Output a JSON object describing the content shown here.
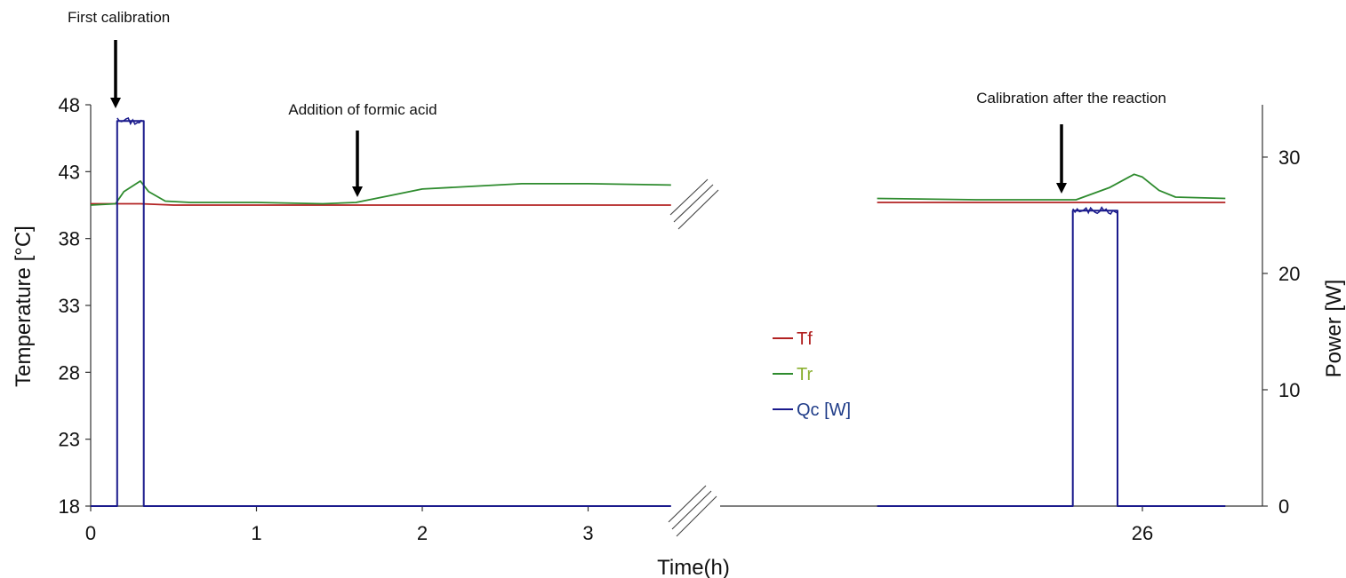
{
  "chart_data": {
    "type": "line",
    "xlabel": "Time(h)",
    "ylabel_left": "Temperature [°C]",
    "ylabel_right": "Power [W]",
    "ylim_left": [
      18,
      48
    ],
    "ylim_right": [
      0,
      34.5
    ],
    "yticks_left": [
      "48",
      "43",
      "38",
      "33",
      "28",
      "23",
      "18"
    ],
    "yticks_right": [
      "30",
      "20",
      "10",
      "0"
    ],
    "xticks_segment1": [
      "0",
      "1",
      "2",
      "3"
    ],
    "xticks_segment2": [
      "26"
    ],
    "axis_break": true,
    "legend": {
      "position": "center",
      "entries": [
        "Tf",
        "Tr",
        "Qc [W]"
      ]
    },
    "colors": {
      "Tf": "#b22222",
      "Tr": "#2e8b2e",
      "Qc": "#1a1a8c",
      "legend_Tf": "#b22222",
      "legend_Tr": "#8ab030",
      "legend_Qc": "#1f3c88"
    },
    "annotations": [
      "First calibration",
      "Addition of formic acid",
      "Calibration after the reaction"
    ],
    "series": [
      {
        "name": "Tf",
        "axis": "left",
        "seg1": [
          [
            0,
            40.6
          ],
          [
            0.3,
            40.6
          ],
          [
            0.5,
            40.5
          ],
          [
            1.0,
            40.5
          ],
          [
            1.5,
            40.5
          ],
          [
            2.0,
            40.5
          ],
          [
            2.5,
            40.5
          ],
          [
            3.0,
            40.5
          ],
          [
            3.5,
            40.5
          ]
        ],
        "seg2": [
          [
            24.4,
            40.7
          ],
          [
            25.5,
            40.7
          ],
          [
            26.0,
            40.7
          ],
          [
            26.5,
            40.7
          ]
        ]
      },
      {
        "name": "Tr",
        "axis": "left",
        "seg1": [
          [
            0,
            40.5
          ],
          [
            0.15,
            40.6
          ],
          [
            0.2,
            41.5
          ],
          [
            0.3,
            42.3
          ],
          [
            0.35,
            41.5
          ],
          [
            0.45,
            40.8
          ],
          [
            0.6,
            40.7
          ],
          [
            1.0,
            40.7
          ],
          [
            1.4,
            40.6
          ],
          [
            1.6,
            40.7
          ],
          [
            1.8,
            41.2
          ],
          [
            2.0,
            41.7
          ],
          [
            2.3,
            41.9
          ],
          [
            2.6,
            42.1
          ],
          [
            3.0,
            42.1
          ],
          [
            3.5,
            42.0
          ]
        ],
        "seg2": [
          [
            24.4,
            41.0
          ],
          [
            25.0,
            40.9
          ],
          [
            25.6,
            40.9
          ],
          [
            25.8,
            41.8
          ],
          [
            25.95,
            42.8
          ],
          [
            26.0,
            42.6
          ],
          [
            26.1,
            41.6
          ],
          [
            26.2,
            41.1
          ],
          [
            26.5,
            41.0
          ]
        ]
      },
      {
        "name": "Qc [W]",
        "axis": "right",
        "seg1": [
          [
            0,
            0
          ],
          [
            0.16,
            0
          ],
          [
            0.16,
            33.1
          ],
          [
            0.32,
            33.1
          ],
          [
            0.32,
            0
          ],
          [
            3.5,
            0
          ]
        ],
        "seg2": [
          [
            24.4,
            0
          ],
          [
            25.58,
            0
          ],
          [
            25.58,
            25.4
          ],
          [
            25.85,
            25.4
          ],
          [
            25.85,
            0
          ],
          [
            26.5,
            0
          ]
        ]
      }
    ]
  }
}
